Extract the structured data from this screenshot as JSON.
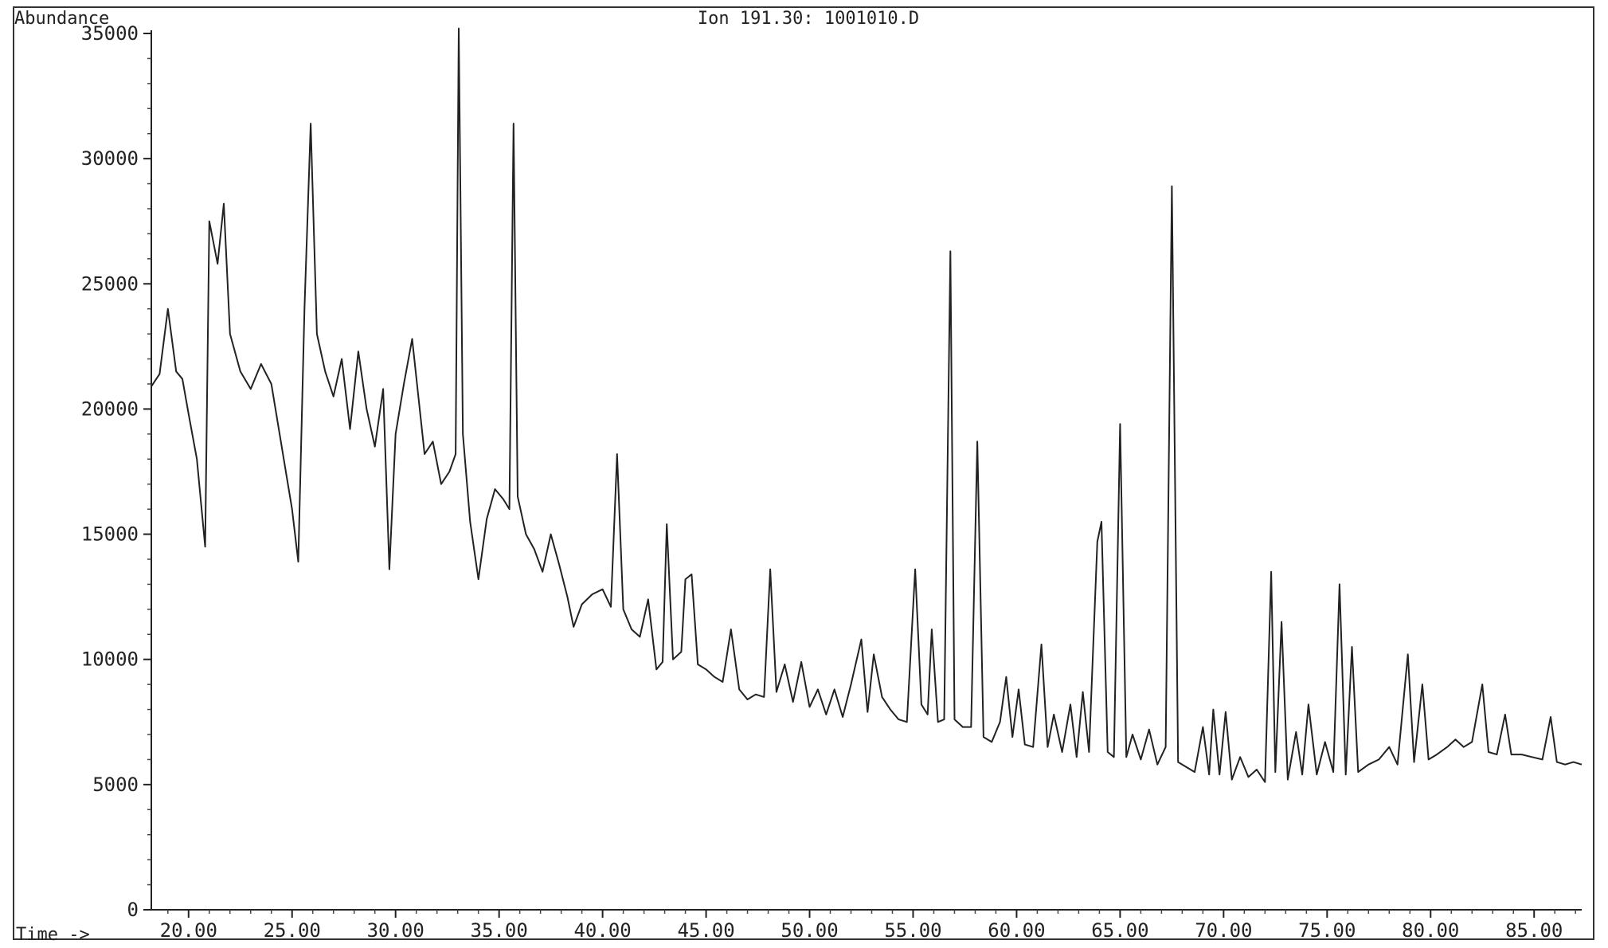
{
  "chart_data": {
    "type": "line",
    "title": "Ion 191.30: 1001010.D",
    "ylabel": "Abundance",
    "xlabel": "Time ->",
    "xlim": [
      18.2,
      86.5
    ],
    "ylim": [
      0,
      35000
    ],
    "x_ticks": [
      "20.00",
      "25.00",
      "30.00",
      "35.00",
      "40.00",
      "45.00",
      "50.00",
      "55.00",
      "60.00",
      "65.00",
      "70.00",
      "75.00",
      "80.00",
      "85.00"
    ],
    "y_ticks": [
      "0",
      "5000",
      "10000",
      "15000",
      "20000",
      "25000",
      "30000",
      "35000"
    ],
    "grid": false,
    "series": [
      {
        "values": [
          [
            18.2,
            20900
          ],
          [
            18.6,
            21400
          ],
          [
            19.0,
            24000
          ],
          [
            19.4,
            21500
          ],
          [
            19.7,
            21200
          ],
          [
            20.0,
            19800
          ],
          [
            20.4,
            18000
          ],
          [
            20.8,
            14500
          ],
          [
            21.0,
            27500
          ],
          [
            21.4,
            25800
          ],
          [
            21.7,
            28200
          ],
          [
            22.0,
            23000
          ],
          [
            22.5,
            21500
          ],
          [
            23.0,
            20800
          ],
          [
            23.5,
            21800
          ],
          [
            24.0,
            21000
          ],
          [
            24.5,
            18500
          ],
          [
            25.0,
            16000
          ],
          [
            25.3,
            13900
          ],
          [
            25.6,
            24000
          ],
          [
            25.9,
            31400
          ],
          [
            26.2,
            23000
          ],
          [
            26.6,
            21500
          ],
          [
            27.0,
            20500
          ],
          [
            27.4,
            22000
          ],
          [
            27.8,
            19200
          ],
          [
            28.2,
            22300
          ],
          [
            28.6,
            20000
          ],
          [
            29.0,
            18500
          ],
          [
            29.4,
            20800
          ],
          [
            29.7,
            13600
          ],
          [
            30.0,
            19000
          ],
          [
            30.4,
            21000
          ],
          [
            30.8,
            22800
          ],
          [
            31.1,
            20500
          ],
          [
            31.4,
            18200
          ],
          [
            31.8,
            18700
          ],
          [
            32.2,
            17000
          ],
          [
            32.6,
            17500
          ],
          [
            32.9,
            18200
          ],
          [
            33.05,
            35200
          ],
          [
            33.25,
            19000
          ],
          [
            33.6,
            15500
          ],
          [
            34.0,
            13200
          ],
          [
            34.4,
            15600
          ],
          [
            34.8,
            16800
          ],
          [
            35.2,
            16400
          ],
          [
            35.5,
            16000
          ],
          [
            35.7,
            31400
          ],
          [
            35.9,
            16500
          ],
          [
            36.3,
            15000
          ],
          [
            36.7,
            14400
          ],
          [
            37.1,
            13500
          ],
          [
            37.5,
            15000
          ],
          [
            37.9,
            13800
          ],
          [
            38.3,
            12500
          ],
          [
            38.6,
            11300
          ],
          [
            39.0,
            12200
          ],
          [
            39.5,
            12600
          ],
          [
            40.0,
            12800
          ],
          [
            40.4,
            12100
          ],
          [
            40.7,
            18200
          ],
          [
            41.0,
            12000
          ],
          [
            41.4,
            11200
          ],
          [
            41.8,
            10900
          ],
          [
            42.2,
            12400
          ],
          [
            42.6,
            9600
          ],
          [
            42.9,
            9900
          ],
          [
            43.1,
            15400
          ],
          [
            43.4,
            10000
          ],
          [
            43.8,
            10300
          ],
          [
            44.0,
            13200
          ],
          [
            44.3,
            13400
          ],
          [
            44.6,
            9800
          ],
          [
            45.0,
            9600
          ],
          [
            45.4,
            9300
          ],
          [
            45.8,
            9100
          ],
          [
            46.2,
            11200
          ],
          [
            46.6,
            8800
          ],
          [
            47.0,
            8400
          ],
          [
            47.4,
            8600
          ],
          [
            47.8,
            8500
          ],
          [
            48.1,
            13600
          ],
          [
            48.4,
            8700
          ],
          [
            48.8,
            9800
          ],
          [
            49.2,
            8300
          ],
          [
            49.6,
            9900
          ],
          [
            50.0,
            8100
          ],
          [
            50.4,
            8800
          ],
          [
            50.8,
            7800
          ],
          [
            51.2,
            8800
          ],
          [
            51.6,
            7700
          ],
          [
            52.0,
            9000
          ],
          [
            52.5,
            10800
          ],
          [
            52.8,
            7900
          ],
          [
            53.1,
            10200
          ],
          [
            53.5,
            8500
          ],
          [
            53.9,
            8000
          ],
          [
            54.3,
            7600
          ],
          [
            54.7,
            7500
          ],
          [
            55.1,
            13600
          ],
          [
            55.4,
            8200
          ],
          [
            55.7,
            7800
          ],
          [
            55.9,
            11200
          ],
          [
            56.2,
            7500
          ],
          [
            56.5,
            7600
          ],
          [
            56.8,
            26300
          ],
          [
            57.0,
            7600
          ],
          [
            57.4,
            7300
          ],
          [
            57.8,
            7300
          ],
          [
            58.1,
            18700
          ],
          [
            58.4,
            6900
          ],
          [
            58.8,
            6700
          ],
          [
            59.2,
            7500
          ],
          [
            59.5,
            9300
          ],
          [
            59.8,
            6900
          ],
          [
            60.1,
            8800
          ],
          [
            60.4,
            6600
          ],
          [
            60.8,
            6500
          ],
          [
            61.2,
            10600
          ],
          [
            61.5,
            6500
          ],
          [
            61.8,
            7800
          ],
          [
            62.2,
            6300
          ],
          [
            62.6,
            8200
          ],
          [
            62.9,
            6100
          ],
          [
            63.2,
            8700
          ],
          [
            63.5,
            6300
          ],
          [
            63.9,
            14700
          ],
          [
            64.1,
            15500
          ],
          [
            64.4,
            6300
          ],
          [
            64.7,
            6100
          ],
          [
            65.0,
            19400
          ],
          [
            65.3,
            6100
          ],
          [
            65.6,
            7000
          ],
          [
            66.0,
            6000
          ],
          [
            66.4,
            7200
          ],
          [
            66.8,
            5800
          ],
          [
            67.2,
            6500
          ],
          [
            67.5,
            28900
          ],
          [
            67.8,
            5900
          ],
          [
            68.2,
            5700
          ],
          [
            68.6,
            5500
          ],
          [
            69.0,
            7300
          ],
          [
            69.3,
            5400
          ],
          [
            69.5,
            8000
          ],
          [
            69.8,
            5400
          ],
          [
            70.1,
            7900
          ],
          [
            70.4,
            5200
          ],
          [
            70.8,
            6100
          ],
          [
            71.2,
            5300
          ],
          [
            71.6,
            5600
          ],
          [
            72.0,
            5100
          ],
          [
            72.3,
            13500
          ],
          [
            72.5,
            5500
          ],
          [
            72.8,
            11500
          ],
          [
            73.1,
            5200
          ],
          [
            73.5,
            7100
          ],
          [
            73.8,
            5400
          ],
          [
            74.1,
            8200
          ],
          [
            74.5,
            5400
          ],
          [
            74.9,
            6700
          ],
          [
            75.3,
            5500
          ],
          [
            75.6,
            13000
          ],
          [
            75.9,
            5400
          ],
          [
            76.2,
            10500
          ],
          [
            76.5,
            5500
          ],
          [
            77.0,
            5800
          ],
          [
            77.5,
            6000
          ],
          [
            78.0,
            6500
          ],
          [
            78.4,
            5800
          ],
          [
            78.9,
            10200
          ],
          [
            79.2,
            5900
          ],
          [
            79.6,
            9000
          ],
          [
            79.9,
            6000
          ],
          [
            80.3,
            6200
          ],
          [
            80.8,
            6500
          ],
          [
            81.2,
            6800
          ],
          [
            81.6,
            6500
          ],
          [
            82.0,
            6700
          ],
          [
            82.5,
            9000
          ],
          [
            82.8,
            6300
          ],
          [
            83.2,
            6200
          ],
          [
            83.6,
            7800
          ],
          [
            83.9,
            6200
          ],
          [
            84.4,
            6200
          ],
          [
            84.9,
            6100
          ],
          [
            85.4,
            6000
          ],
          [
            85.8,
            7700
          ],
          [
            86.1,
            5900
          ],
          [
            86.5,
            5800
          ],
          [
            86.9,
            5900
          ],
          [
            87.3,
            5800
          ]
        ]
      }
    ]
  }
}
